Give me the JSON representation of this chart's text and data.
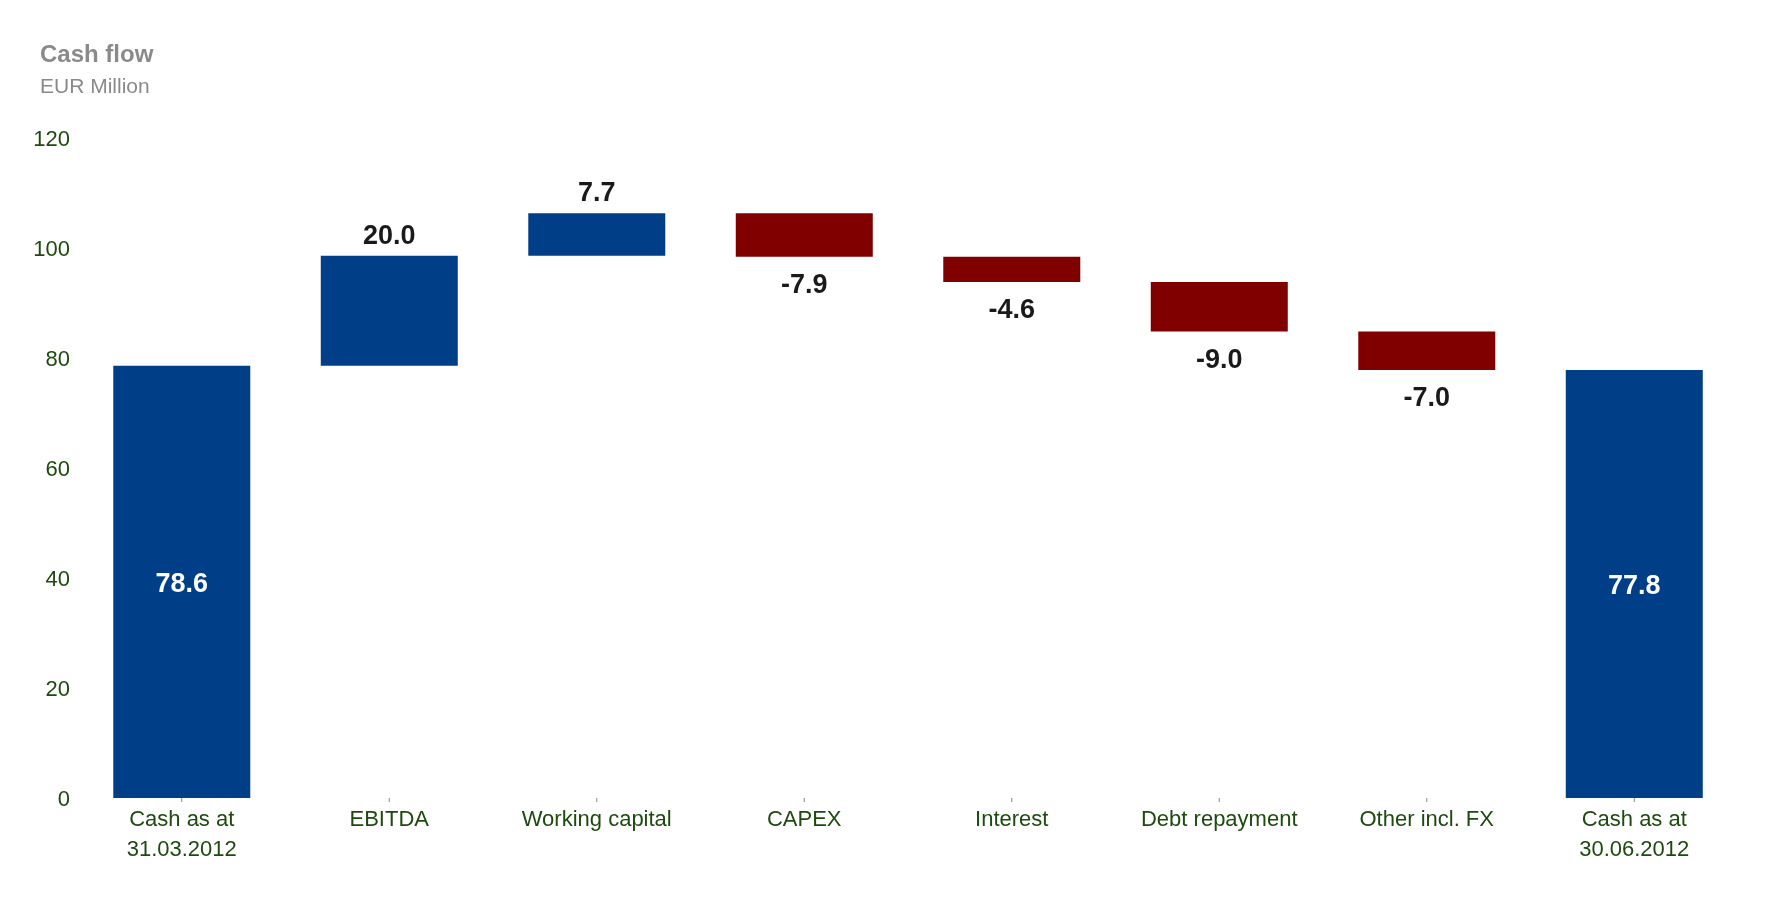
{
  "chart_data": {
    "type": "bar",
    "title": "Cash flow",
    "subtitle": "EUR Million",
    "categories": [
      "Cash as at 31.03.2012",
      "EBITDA",
      "Working capital",
      "CAPEX",
      "Interest",
      "Debt repayment",
      "Other incl. FX",
      "Cash as at 30.06.2012"
    ],
    "values": [
      78.6,
      20.0,
      7.7,
      -7.9,
      -4.6,
      -9.0,
      -7.0,
      77.8
    ],
    "base": [
      0,
      78.6,
      98.6,
      106.3,
      98.4,
      93.8,
      84.8,
      0
    ],
    "colors": [
      "#003f87",
      "#003f87",
      "#003f87",
      "#800000",
      "#800000",
      "#800000",
      "#800000",
      "#003f87"
    ],
    "value_labels": [
      "78.6",
      "20.0",
      "7.7",
      "-7.9",
      "-4.6",
      "-9.0",
      "-7.0",
      "77.8"
    ],
    "ylim": [
      0,
      120
    ],
    "yticks": [
      0,
      20,
      40,
      60,
      80,
      100,
      120
    ],
    "grid": false
  }
}
